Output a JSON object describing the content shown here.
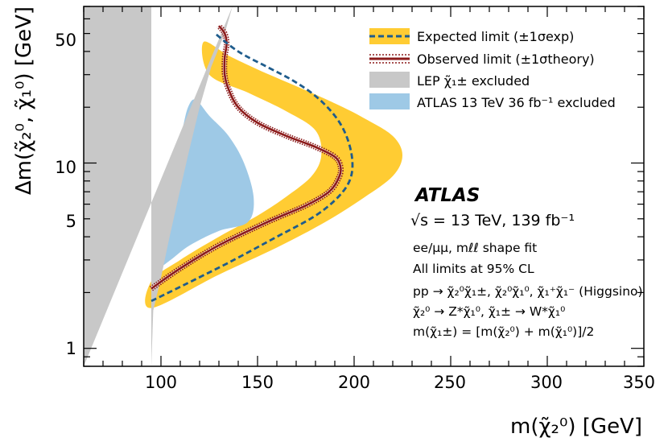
{
  "chart_data": {
    "type": "line",
    "xlabel": "m(χ̃₂⁰) [GeV]",
    "ylabel": "Δm(χ̃₂⁰, χ̃₁⁰) [GeV]",
    "xlim": [
      60,
      350
    ],
    "ylim": [
      0.8,
      70
    ],
    "y_scale": "log",
    "x_ticks": [
      100,
      150,
      200,
      250,
      300,
      350
    ],
    "y_ticks": [
      1,
      5,
      10,
      50
    ],
    "x_tick_labels": [
      "100",
      "150",
      "200",
      "250",
      "300",
      "350"
    ],
    "y_tick_labels": [
      "1",
      "5",
      "10",
      "50"
    ],
    "legend_position": "top-right",
    "legend": [
      "Expected limit (±1σexp)",
      "Observed limit (±1σtheory)",
      "LEP χ̃₁± excluded",
      "ATLAS 13 TeV 36 fb⁻¹ excluded"
    ],
    "annotations": {
      "experiment": "ATLAS",
      "energy_lumi": "√s = 13 TeV, 139 fb⁻¹",
      "lines": [
        "ee/μμ, mℓℓ shape fit",
        "All limits at 95% CL",
        "pp → χ̃₂⁰χ̃₁±, χ̃₂⁰χ̃₁⁰, χ̃₁⁺χ̃₁⁻ (Higgsino)",
        "χ̃₂⁰ → Z*χ̃₁⁰, χ̃₁± → W*χ̃₁⁰",
        "m(χ̃₁±) = [m(χ̃₂⁰) + m(χ̃₁⁰)]/2"
      ]
    },
    "colors": {
      "expected_band": "#ffcc33",
      "expected_line": "#1f5c8c",
      "observed_line": "#8b1a1a",
      "lep_region": "#c8c8c8",
      "atlas36_region": "#9ec9e6"
    },
    "series": [
      {
        "name": "Expected limit (±1σexp)",
        "x": [
          95,
          112,
          135,
          160,
          180,
          192,
          198,
          199,
          196,
          190,
          180,
          168,
          155,
          140,
          128
        ],
        "y": [
          1.8,
          2.2,
          2.9,
          4.0,
          5.2,
          6.6,
          8.2,
          10.5,
          14.0,
          18.0,
          23.0,
          28.0,
          33.0,
          40.0,
          50.0
        ]
      },
      {
        "name": "Observed limit (±1σtheory)",
        "x": [
          95,
          110,
          130,
          155,
          175,
          187,
          192,
          193,
          190,
          180,
          165,
          150,
          140,
          135,
          133,
          133,
          134,
          133,
          130
        ],
        "y": [
          2.1,
          2.7,
          3.6,
          4.8,
          5.9,
          7.0,
          8.3,
          9.5,
          10.8,
          12.2,
          14.0,
          16.5,
          20.0,
          25.0,
          30.0,
          37.0,
          44.0,
          50.0,
          55.0
        ]
      },
      {
        "name": "Expected band (±1σexp)",
        "x": [
          95,
          130,
          160,
          185,
          205,
          220,
          225,
          220,
          205,
          190,
          170,
          150,
          135,
          122,
          125,
          145,
          165,
          180,
          183,
          178,
          165,
          150,
          130,
          110,
          95
        ],
        "y": [
          1.65,
          2.5,
          3.5,
          4.8,
          6.5,
          8.5,
          11.0,
          14.0,
          17.5,
          21.0,
          26.0,
          32.0,
          38.0,
          45.0,
          30.0,
          24.0,
          19.0,
          15.0,
          11.0,
          8.5,
          6.6,
          5.2,
          4.0,
          3.0,
          2.3
        ]
      },
      {
        "name": "LEP χ̃₁± excluded",
        "x": [
          60,
          60,
          95,
          95,
          96,
          100,
          104,
          109,
          114,
          120,
          126,
          133,
          137
        ],
        "y": [
          0.8,
          70,
          70,
          0.8,
          1.6,
          2.4,
          3.8,
          6.5,
          11.0,
          20.0,
          33.0,
          50.0,
          70.0
        ]
      },
      {
        "name": "ATLAS 13 TeV 36 fb⁻¹ excluded",
        "x": [
          97,
          105,
          115,
          130,
          145,
          148,
          143,
          135,
          125,
          118,
          114,
          111,
          107,
          104,
          102,
          100,
          98
        ],
        "y": [
          2.6,
          3.0,
          3.6,
          4.3,
          4.8,
          6.5,
          10.0,
          14.0,
          18.0,
          22.0,
          20.0,
          15.0,
          10.0,
          6.5,
          4.5,
          3.3,
          2.7
        ]
      }
    ]
  }
}
